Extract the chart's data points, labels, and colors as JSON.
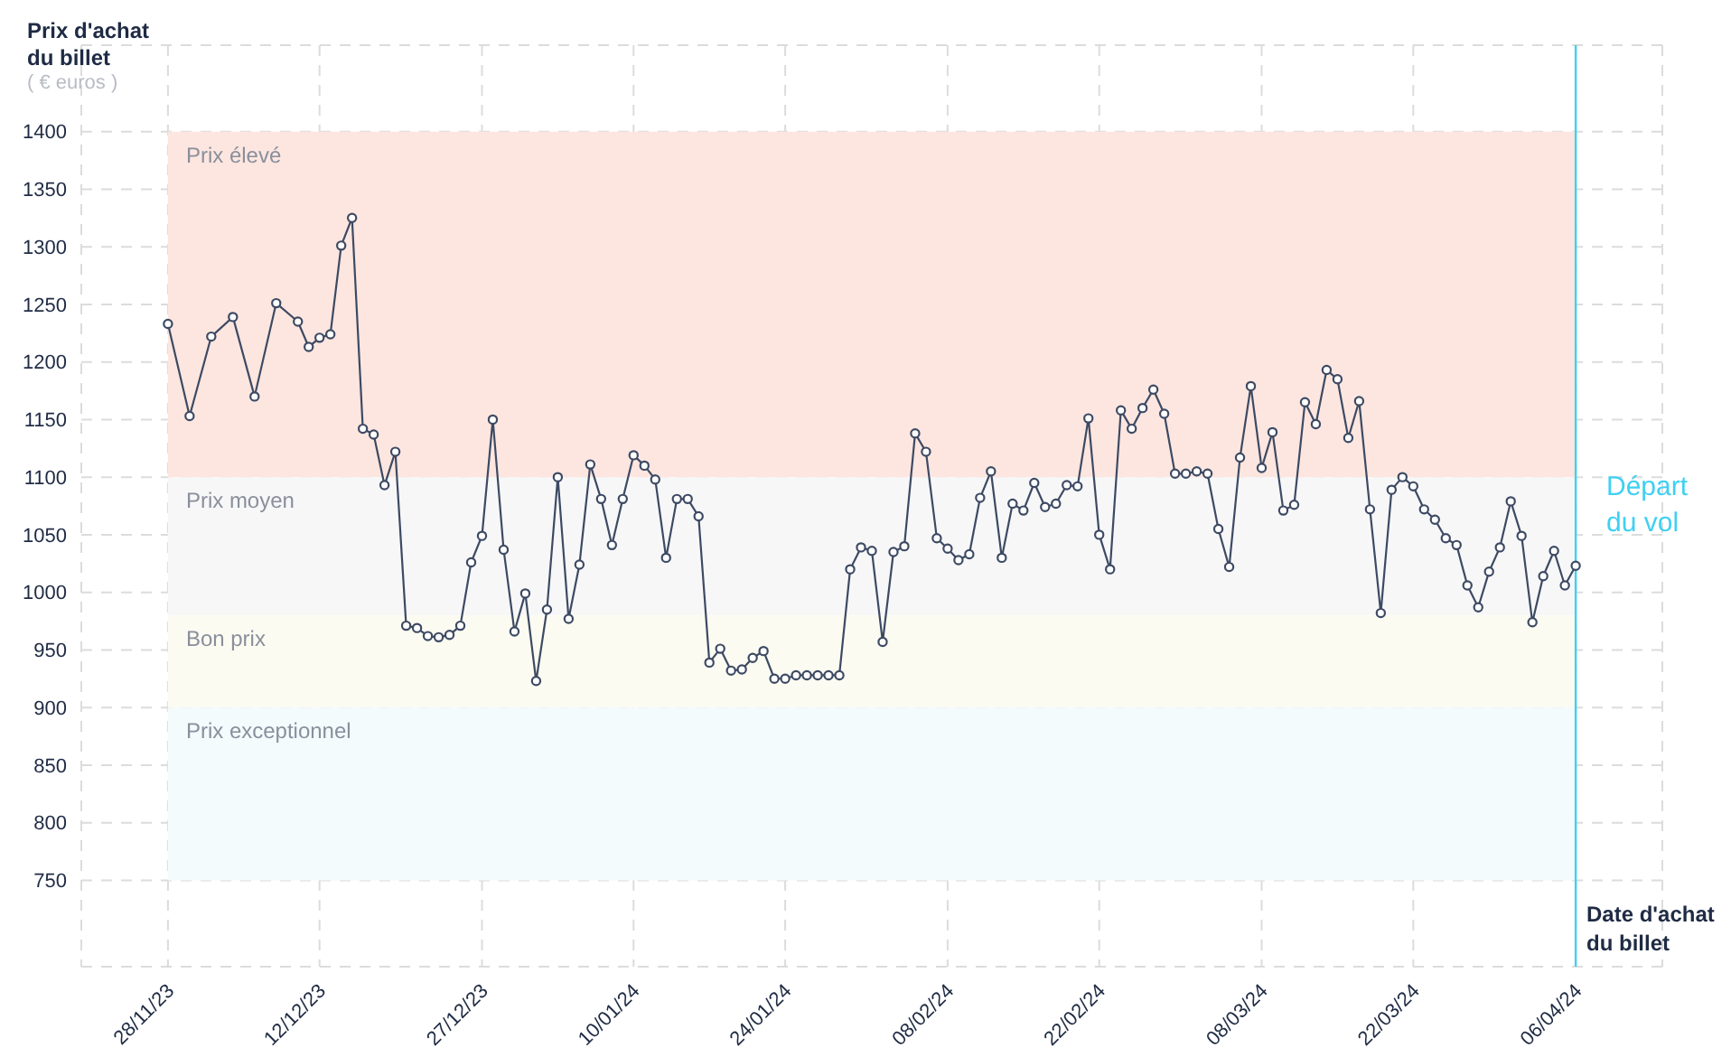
{
  "chart_data": {
    "type": "line",
    "ylabel": "Prix d'achat du billet",
    "xlabel": "Date d'achat du billet",
    "annotations": [
      "( € euros )"
    ],
    "x": [
      "2023-11-28",
      "2023-11-30",
      "2023-12-02",
      "2023-12-04",
      "2023-12-06",
      "2023-12-08",
      "2023-12-10",
      "2023-12-11",
      "2023-12-12",
      "2023-12-13",
      "2023-12-14",
      "2023-12-15",
      "2023-12-16",
      "2023-12-17",
      "2023-12-18",
      "2023-12-19",
      "2023-12-20",
      "2023-12-21",
      "2023-12-22",
      "2023-12-23",
      "2023-12-24",
      "2023-12-25",
      "2023-12-26",
      "2023-12-27",
      "2023-12-28",
      "2023-12-29",
      "2023-12-30",
      "2023-12-31",
      "2024-01-01",
      "2024-01-02",
      "2024-01-03",
      "2024-01-04",
      "2024-01-05",
      "2024-01-06",
      "2024-01-07",
      "2024-01-08",
      "2024-01-09",
      "2024-01-10",
      "2024-01-11",
      "2024-01-12",
      "2024-01-13",
      "2024-01-14",
      "2024-01-15",
      "2024-01-16",
      "2024-01-17",
      "2024-01-18",
      "2024-01-19",
      "2024-01-20",
      "2024-01-21",
      "2024-01-22",
      "2024-01-23",
      "2024-01-24",
      "2024-01-25",
      "2024-01-26",
      "2024-01-27",
      "2024-01-28",
      "2024-01-29",
      "2024-01-30",
      "2024-01-31",
      "2024-02-01",
      "2024-02-02",
      "2024-02-03",
      "2024-02-04",
      "2024-02-05",
      "2024-02-06",
      "2024-02-07",
      "2024-02-08",
      "2024-02-09",
      "2024-02-10",
      "2024-02-11",
      "2024-02-12",
      "2024-02-13",
      "2024-02-14",
      "2024-02-15",
      "2024-02-16",
      "2024-02-17",
      "2024-02-18",
      "2024-02-19",
      "2024-02-20",
      "2024-02-21",
      "2024-02-22",
      "2024-02-23",
      "2024-02-24",
      "2024-02-25",
      "2024-02-26",
      "2024-02-27",
      "2024-02-28",
      "2024-02-29",
      "2024-03-01",
      "2024-03-02",
      "2024-03-03",
      "2024-03-04",
      "2024-03-05",
      "2024-03-06",
      "2024-03-07",
      "2024-03-08",
      "2024-03-09",
      "2024-03-10",
      "2024-03-11",
      "2024-03-12",
      "2024-03-13",
      "2024-03-14",
      "2024-03-15",
      "2024-03-16",
      "2024-03-17",
      "2024-03-18",
      "2024-03-19",
      "2024-03-20",
      "2024-03-21",
      "2024-03-22",
      "2024-03-23",
      "2024-03-24",
      "2024-03-25",
      "2024-03-26",
      "2024-03-27",
      "2024-03-28",
      "2024-03-29",
      "2024-03-30",
      "2024-03-31",
      "2024-04-01",
      "2024-04-02",
      "2024-04-03",
      "2024-04-04",
      "2024-04-05",
      "2024-04-06"
    ],
    "series": [
      {
        "color": "#3d4a63",
        "values": [
          1233,
          1153,
          1222,
          1239,
          1170,
          1251,
          1235,
          1213,
          1221,
          1224,
          1301,
          1325,
          1142,
          1137,
          1093,
          1122,
          971,
          969,
          962,
          961,
          963,
          971,
          1026,
          1049,
          1150,
          1037,
          966,
          999,
          923,
          985,
          1100,
          977,
          1024,
          1111,
          1081,
          1041,
          1081,
          1119,
          1110,
          1098,
          1030,
          1081,
          1081,
          1066,
          939,
          951,
          932,
          933,
          943,
          949,
          925,
          925,
          928,
          928,
          928,
          928,
          928,
          1020,
          1039,
          1036,
          957,
          1035,
          1040,
          1138,
          1122,
          1047,
          1038,
          1028,
          1033,
          1082,
          1105,
          1030,
          1077,
          1071,
          1095,
          1074,
          1077,
          1093,
          1092,
          1151,
          1050,
          1020,
          1158,
          1142,
          1160,
          1176,
          1155,
          1103,
          1103,
          1105,
          1103,
          1055,
          1022,
          1117,
          1179,
          1108,
          1139,
          1071,
          1076,
          1165,
          1146,
          1193,
          1185,
          1134,
          1166,
          1072,
          982,
          1089,
          1100,
          1092,
          1072,
          1063,
          1047,
          1041,
          1006,
          987,
          1018,
          1039,
          1079,
          1049,
          974,
          1014,
          1036,
          1006,
          1023
        ]
      }
    ],
    "xlim": [
      "2023-11-20",
      "2024-04-14"
    ],
    "xticks": [
      {
        "value": "2023-11-28",
        "label": "28/11/23"
      },
      {
        "value": "2023-12-12",
        "label": "12/12/23"
      },
      {
        "value": "2023-12-27",
        "label": "27/12/23"
      },
      {
        "value": "2024-01-10",
        "label": "10/01/24"
      },
      {
        "value": "2024-01-24",
        "label": "24/01/24"
      },
      {
        "value": "2024-02-08",
        "label": "08/02/24"
      },
      {
        "value": "2024-02-22",
        "label": "22/02/24"
      },
      {
        "value": "2024-03-08",
        "label": "08/03/24"
      },
      {
        "value": "2024-03-22",
        "label": "22/03/24"
      },
      {
        "value": "2024-04-06",
        "label": "06/04/24"
      }
    ],
    "ylim": [
      675,
      1475
    ],
    "yticks": [
      750,
      800,
      850,
      900,
      950,
      1000,
      1050,
      1100,
      1150,
      1200,
      1250,
      1300,
      1350,
      1400
    ],
    "bands": [
      {
        "axis": "y",
        "from": 1100,
        "to": 1400,
        "label": "Prix élevé",
        "color": "#fde6e0"
      },
      {
        "axis": "y",
        "from": 980,
        "to": 1100,
        "label": "Prix moyen",
        "color": "#f7f7f8"
      },
      {
        "axis": "y",
        "from": 900,
        "to": 980,
        "label": "Bon prix",
        "color": "#fbfbf1"
      },
      {
        "axis": "y",
        "from": 750,
        "to": 900,
        "label": "Prix exceptionnel",
        "color": "#f3fbfd"
      }
    ],
    "ref_lines": [
      {
        "axis": "x",
        "value": "2024-04-06",
        "label": "Départ du vol",
        "color": "#3fd0f2",
        "line_style": "solid"
      }
    ],
    "grid": true,
    "marker": "circle",
    "line_style": "solid"
  }
}
